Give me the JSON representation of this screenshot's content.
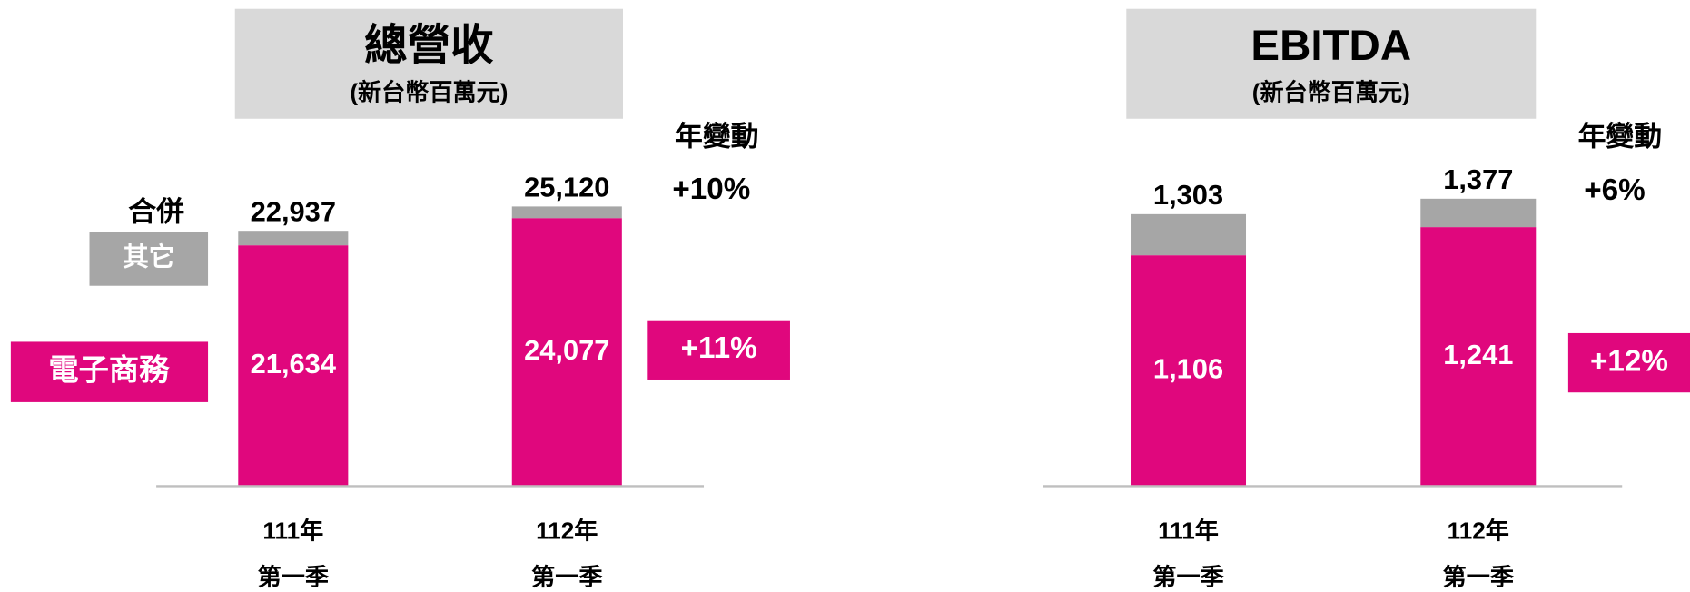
{
  "chart_data": [
    {
      "type": "bar",
      "stacked": true,
      "title": "總營收",
      "subtitle": "(新台幣百萬元)",
      "categories": [
        [
          "111年",
          "第一季"
        ],
        [
          "112年",
          "第一季"
        ]
      ],
      "ylim": [
        0,
        30000
      ],
      "series": [
        {
          "name": "電子商務",
          "color": "#e0077d",
          "values": [
            21634,
            24077
          ],
          "value_labels": [
            "21,634",
            "24,077"
          ]
        },
        {
          "name": "其它",
          "color": "#a6a6a6",
          "values": [
            1303,
            1043
          ]
        }
      ],
      "totals": {
        "name": "合併",
        "values": [
          22937,
          25120
        ],
        "value_labels": [
          "22,937",
          "25,120"
        ]
      },
      "change_title": "年變動",
      "change_total": "+10%",
      "change_series": "+11%"
    },
    {
      "type": "bar",
      "stacked": true,
      "title": "EBITDA",
      "subtitle": "(新台幣百萬元)",
      "categories": [
        [
          "111年",
          "第一季"
        ],
        [
          "112年",
          "第一季"
        ]
      ],
      "ylim": [
        0,
        1600
      ],
      "series": [
        {
          "color": "#e0077d",
          "values": [
            1106,
            1241
          ],
          "value_labels": [
            "1,106",
            "1,241"
          ]
        },
        {
          "color": "#a6a6a6",
          "values": [
            197,
            136
          ]
        }
      ],
      "totals": {
        "values": [
          1303,
          1377
        ],
        "value_labels": [
          "1,303",
          "1,377"
        ]
      },
      "change_title": "年變動",
      "change_total": "+6%",
      "change_series": "+12%"
    }
  ]
}
